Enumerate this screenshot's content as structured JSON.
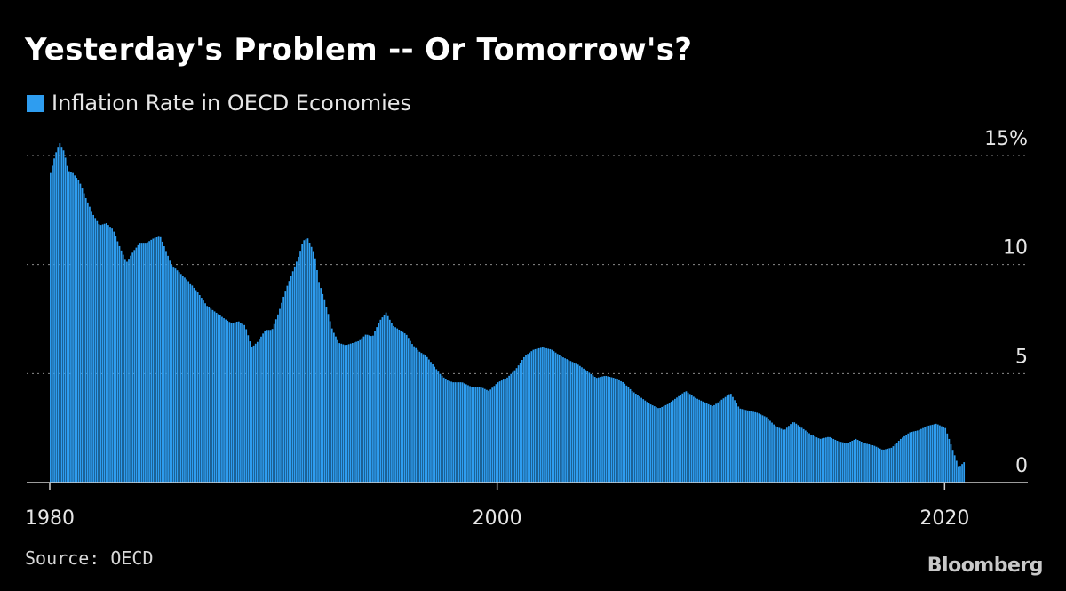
{
  "header": {
    "title": "Yesterday's Problem -- Or Tomorrow's?"
  },
  "footer": {
    "source": "Source: OECD",
    "brand": "Bloomberg"
  },
  "chart_data": {
    "type": "bar",
    "series": [
      {
        "name": "Inflation Rate in OECD Economies",
        "color": "#2e9df0"
      }
    ],
    "xlabel": "",
    "ylabel": "",
    "xlim": [
      1980,
      2020.9
    ],
    "ylim": [
      -0.3,
      15
    ],
    "y_ticks": [
      {
        "value": 0,
        "label": "0"
      },
      {
        "value": 5,
        "label": "5"
      },
      {
        "value": 10,
        "label": "10"
      },
      {
        "value": 15,
        "label": "15%"
      }
    ],
    "x_ticks": [
      {
        "value": 1980,
        "label": "1980"
      },
      {
        "value": 2000,
        "label": "2000"
      },
      {
        "value": 2020,
        "label": "2020"
      }
    ],
    "grid": "horizontal dotted",
    "y_axis_side": "right",
    "points": [
      [
        1980.0,
        14.2
      ],
      [
        1980.2,
        15.0
      ],
      [
        1980.4,
        15.6
      ],
      [
        1980.6,
        15.2
      ],
      [
        1980.8,
        14.3
      ],
      [
        1981.0,
        14.2
      ],
      [
        1981.3,
        13.8
      ],
      [
        1981.6,
        13.0
      ],
      [
        1981.9,
        12.3
      ],
      [
        1982.2,
        11.8
      ],
      [
        1982.5,
        11.9
      ],
      [
        1982.8,
        11.6
      ],
      [
        1983.1,
        10.8
      ],
      [
        1983.4,
        10.1
      ],
      [
        1983.7,
        10.6
      ],
      [
        1984.0,
        11.0
      ],
      [
        1984.3,
        11.0
      ],
      [
        1984.6,
        11.2
      ],
      [
        1984.9,
        11.3
      ],
      [
        1985.1,
        10.8
      ],
      [
        1985.4,
        10.0
      ],
      [
        1985.8,
        9.6
      ],
      [
        1986.2,
        9.2
      ],
      [
        1986.6,
        8.7
      ],
      [
        1987.0,
        8.1
      ],
      [
        1987.4,
        7.8
      ],
      [
        1987.8,
        7.5
      ],
      [
        1988.1,
        7.3
      ],
      [
        1988.4,
        7.4
      ],
      [
        1988.7,
        7.2
      ],
      [
        1989.0,
        6.2
      ],
      [
        1989.3,
        6.5
      ],
      [
        1989.6,
        7.0
      ],
      [
        1989.9,
        7.0
      ],
      [
        1990.2,
        7.8
      ],
      [
        1990.5,
        8.8
      ],
      [
        1990.8,
        9.6
      ],
      [
        1991.1,
        10.4
      ],
      [
        1991.3,
        11.1
      ],
      [
        1991.5,
        11.2
      ],
      [
        1991.8,
        10.5
      ],
      [
        1992.0,
        9.2
      ],
      [
        1992.3,
        8.2
      ],
      [
        1992.6,
        7.0
      ],
      [
        1992.9,
        6.4
      ],
      [
        1993.2,
        6.3
      ],
      [
        1993.5,
        6.4
      ],
      [
        1993.8,
        6.5
      ],
      [
        1994.1,
        6.8
      ],
      [
        1994.4,
        6.7
      ],
      [
        1994.7,
        7.4
      ],
      [
        1995.0,
        7.8
      ],
      [
        1995.3,
        7.2
      ],
      [
        1995.6,
        7.0
      ],
      [
        1995.9,
        6.8
      ],
      [
        1996.2,
        6.3
      ],
      [
        1996.5,
        6.0
      ],
      [
        1996.8,
        5.8
      ],
      [
        1997.1,
        5.4
      ],
      [
        1997.4,
        5.0
      ],
      [
        1997.7,
        4.7
      ],
      [
        1998.0,
        4.6
      ],
      [
        1998.4,
        4.6
      ],
      [
        1998.8,
        4.4
      ],
      [
        1999.2,
        4.4
      ],
      [
        1999.6,
        4.2
      ],
      [
        2000.0,
        4.6
      ],
      [
        2000.4,
        4.8
      ],
      [
        2000.8,
        5.2
      ],
      [
        2001.2,
        5.8
      ],
      [
        2001.6,
        6.1
      ],
      [
        2002.0,
        6.2
      ],
      [
        2002.4,
        6.1
      ],
      [
        2002.8,
        5.8
      ],
      [
        2003.2,
        5.6
      ],
      [
        2003.6,
        5.4
      ],
      [
        2004.0,
        5.1
      ],
      [
        2004.4,
        4.8
      ],
      [
        2004.8,
        4.9
      ],
      [
        2005.2,
        4.8
      ],
      [
        2005.6,
        4.6
      ],
      [
        2006.0,
        4.2
      ],
      [
        2006.4,
        3.9
      ],
      [
        2006.8,
        3.6
      ],
      [
        2007.2,
        3.4
      ],
      [
        2007.6,
        3.6
      ],
      [
        2008.0,
        3.9
      ],
      [
        2008.4,
        4.2
      ],
      [
        2008.8,
        3.9
      ],
      [
        2009.2,
        3.7
      ],
      [
        2009.6,
        3.5
      ],
      [
        2010.0,
        3.8
      ],
      [
        2010.4,
        4.1
      ],
      [
        2010.8,
        3.4
      ],
      [
        2011.2,
        3.3
      ],
      [
        2011.6,
        3.2
      ],
      [
        2012.0,
        3.0
      ],
      [
        2012.4,
        2.6
      ],
      [
        2012.8,
        2.4
      ],
      [
        2013.2,
        2.8
      ],
      [
        2013.6,
        2.5
      ],
      [
        2014.0,
        2.2
      ],
      [
        2014.4,
        2.0
      ],
      [
        2014.8,
        2.1
      ],
      [
        2015.2,
        1.9
      ],
      [
        2015.6,
        1.8
      ],
      [
        2016.0,
        2.0
      ],
      [
        2016.4,
        1.8
      ],
      [
        2016.8,
        1.7
      ],
      [
        2017.2,
        1.5
      ],
      [
        2017.6,
        1.6
      ],
      [
        2018.0,
        2.0
      ],
      [
        2018.4,
        2.3
      ],
      [
        2018.8,
        2.4
      ],
      [
        2019.2,
        2.6
      ],
      [
        2019.6,
        2.7
      ],
      [
        2020.0,
        2.5
      ],
      [
        2020.3,
        1.6
      ],
      [
        2020.6,
        0.7
      ],
      [
        2020.9,
        1.0
      ]
    ]
  }
}
